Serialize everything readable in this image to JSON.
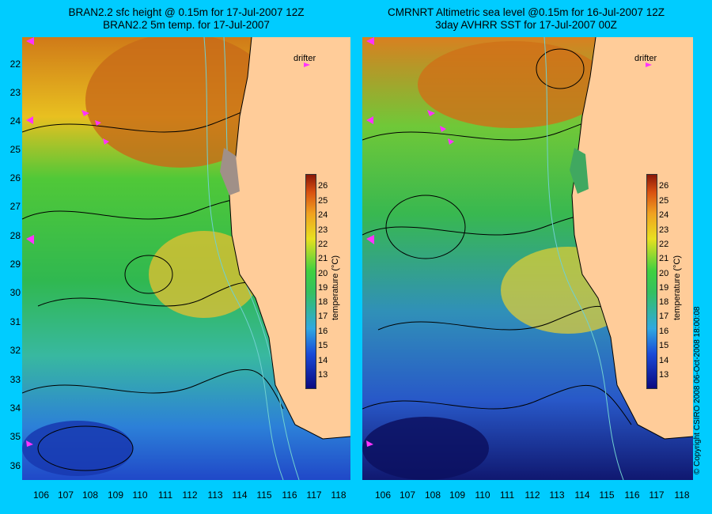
{
  "left_panel": {
    "title_line1": "BRAN2.2 sfc height @ 0.15m for 17-Jul-2007 12Z",
    "title_line2": "BRAN2.2 5m temp. for 17-Jul-2007",
    "drifter_label": "drifter"
  },
  "right_panel": {
    "title_line1": "CMRNRT Altimetric sea level  @0.15m  for 16-Jul-2007 12Z",
    "title_line2": "3day AVHRR SST for 17-Jul-2007 00Z",
    "drifter_label": "drifter"
  },
  "lat_labels": [
    "22",
    "23",
    "24",
    "25",
    "26",
    "27",
    "28",
    "29",
    "30",
    "31",
    "32",
    "33",
    "34",
    "35",
    "36"
  ],
  "lon_labels": [
    "106",
    "107",
    "108",
    "109",
    "110",
    "111",
    "112",
    "113",
    "114",
    "115",
    "116",
    "117",
    "118"
  ],
  "colorbar": {
    "ticks": [
      "26",
      "25",
      "24",
      "23",
      "22",
      "21",
      "20",
      "19",
      "18",
      "17",
      "16",
      "15",
      "14",
      "13"
    ],
    "unit_label": "temperature (°C)"
  },
  "copyright": "© Copyright CSIRO 2008   06-Oct-2008 18:00:08",
  "colors": {
    "background": "#00ccff",
    "land": "#ffcc99",
    "drifter": "#ff33ff"
  }
}
